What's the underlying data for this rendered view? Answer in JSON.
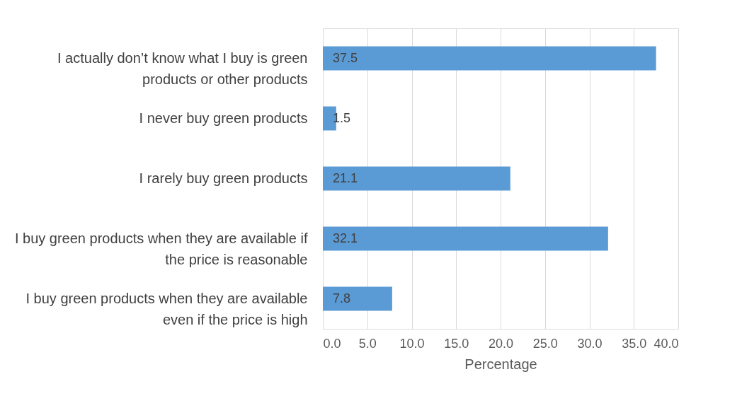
{
  "chart_data": {
    "type": "bar",
    "orientation": "horizontal",
    "categories": [
      "I actually don’t know what I buy is green products or other products",
      "I never buy green products",
      "I rarely buy green products",
      "I buy green products when they are available if the price is reasonable",
      "I buy green products when they are available even if the price is high"
    ],
    "values": [
      37.5,
      1.5,
      21.1,
      32.1,
      7.8
    ],
    "value_labels": [
      "37.5",
      "1.5",
      "21.1",
      "32.1",
      "7.8"
    ],
    "color": "#5b9bd5",
    "xlabel": "Percentage",
    "xlim": [
      0,
      40
    ],
    "xticks": [
      {
        "value": 0,
        "label": "0.0"
      },
      {
        "value": 5,
        "label": "5.0"
      },
      {
        "value": 10,
        "label": "10.0"
      },
      {
        "value": 15,
        "label": "15.0"
      },
      {
        "value": 20,
        "label": "20.0"
      },
      {
        "value": 25,
        "label": "25.0"
      },
      {
        "value": 30,
        "label": "30.0"
      },
      {
        "value": 35,
        "label": "35.0"
      },
      {
        "value": 40,
        "label": "40.0"
      }
    ],
    "grid": "x"
  }
}
